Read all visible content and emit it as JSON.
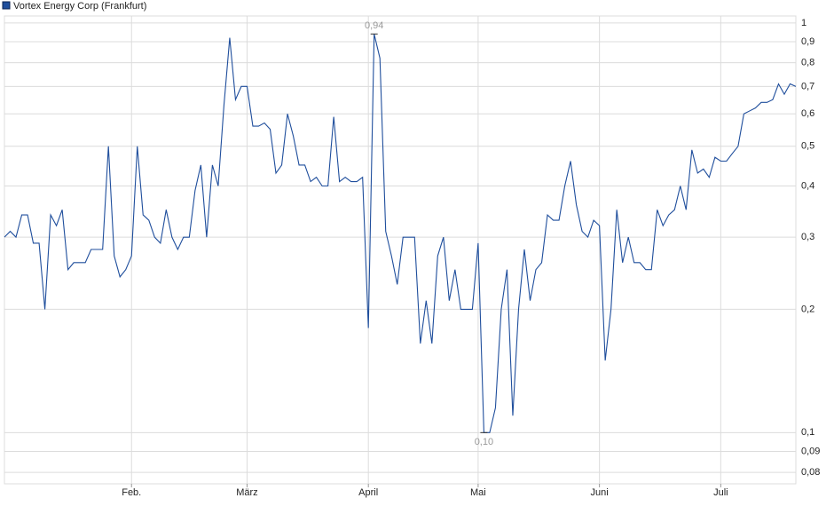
{
  "chart_data": {
    "type": "line",
    "categories": [
      null,
      null,
      null,
      null,
      null,
      null,
      null,
      null,
      null,
      null,
      null,
      null,
      null,
      null,
      null,
      null,
      null,
      null,
      null,
      null,
      null,
      null,
      "Feb.",
      null,
      null,
      null,
      null,
      null,
      null,
      null,
      null,
      null,
      null,
      null,
      null,
      null,
      null,
      null,
      null,
      null,
      null,
      null,
      "März",
      null,
      null,
      null,
      null,
      null,
      null,
      null,
      null,
      null,
      null,
      null,
      null,
      null,
      null,
      null,
      null,
      null,
      null,
      null,
      null,
      "April",
      null,
      null,
      null,
      null,
      null,
      null,
      null,
      null,
      null,
      null,
      null,
      null,
      null,
      null,
      null,
      null,
      null,
      null,
      "Mai",
      null,
      null,
      null,
      null,
      null,
      null,
      null,
      null,
      null,
      null,
      null,
      null,
      null,
      null,
      null,
      null,
      null,
      null,
      null,
      null,
      "Juni",
      null,
      null,
      null,
      null,
      null,
      null,
      null,
      null,
      null,
      null,
      null,
      null,
      null,
      null,
      null,
      null,
      null,
      null,
      null,
      null,
      "Juli",
      null,
      null,
      null,
      null,
      null,
      null,
      null,
      null,
      null,
      null,
      null,
      null,
      null
    ],
    "series": [
      {
        "name": "Vortex Energy Corp (Frankfurt)",
        "color": "#1f4e9c",
        "values": [
          0.3,
          0.31,
          0.3,
          0.34,
          0.34,
          0.29,
          0.29,
          0.2,
          0.34,
          0.32,
          0.35,
          0.25,
          0.26,
          0.26,
          0.26,
          0.28,
          0.28,
          0.28,
          0.5,
          0.27,
          0.24,
          0.25,
          0.27,
          0.5,
          0.34,
          0.33,
          0.3,
          0.29,
          0.35,
          0.3,
          0.28,
          0.3,
          0.3,
          0.39,
          0.45,
          0.3,
          0.45,
          0.4,
          0.63,
          0.92,
          0.65,
          0.7,
          0.7,
          0.56,
          0.56,
          0.57,
          0.55,
          0.43,
          0.45,
          0.6,
          0.53,
          0.45,
          0.45,
          0.41,
          0.42,
          0.4,
          0.4,
          0.59,
          0.41,
          0.42,
          0.41,
          0.41,
          0.42,
          0.18,
          0.94,
          0.82,
          0.31,
          0.27,
          0.23,
          0.3,
          0.3,
          0.3,
          0.165,
          0.21,
          0.165,
          0.27,
          0.3,
          0.21,
          0.25,
          0.2,
          0.2,
          0.2,
          0.29,
          0.1,
          0.1,
          0.115,
          0.2,
          0.25,
          0.11,
          0.2,
          0.28,
          0.21,
          0.25,
          0.26,
          0.34,
          0.33,
          0.33,
          0.4,
          0.46,
          0.36,
          0.31,
          0.3,
          0.33,
          0.32,
          0.15,
          0.2,
          0.35,
          0.26,
          0.3,
          0.26,
          0.26,
          0.25,
          0.25,
          0.35,
          0.32,
          0.34,
          0.35,
          0.4,
          0.35,
          0.49,
          0.43,
          0.44,
          0.42,
          0.47,
          0.46,
          0.46,
          0.48,
          0.5,
          0.6,
          0.61,
          0.62,
          0.64,
          0.64,
          0.65,
          0.71,
          0.67,
          0.71,
          0.7
        ],
        "value_labels": [
          null,
          null,
          null,
          null,
          null,
          null,
          null,
          null,
          null,
          null,
          null,
          null,
          null,
          null,
          null,
          null,
          null,
          null,
          null,
          null,
          null,
          null,
          null,
          null,
          null,
          null,
          null,
          null,
          null,
          null,
          null,
          null,
          null,
          null,
          null,
          null,
          null,
          null,
          null,
          null,
          null,
          null,
          null,
          null,
          null,
          null,
          null,
          null,
          null,
          null,
          null,
          null,
          null,
          null,
          null,
          null,
          null,
          null,
          null,
          null,
          null,
          null,
          null,
          null,
          "0,94",
          null,
          null,
          null,
          null,
          null,
          null,
          null,
          null,
          null,
          null,
          null,
          null,
          null,
          null,
          null,
          null,
          null,
          null,
          "0,10",
          null,
          null,
          null,
          null,
          null,
          null,
          null,
          null,
          null,
          null,
          null,
          null,
          null,
          null,
          null,
          null,
          null,
          null,
          null,
          null,
          null,
          null,
          null,
          null,
          null,
          null,
          null,
          null,
          null,
          null,
          null,
          null,
          null,
          null,
          null,
          null,
          null,
          null,
          null,
          null,
          null,
          null,
          null,
          null,
          null,
          null,
          null,
          null,
          null,
          null,
          null,
          null,
          null,
          null
        ]
      }
    ],
    "log_scale": true,
    "ylim": [
      0.075,
      1.04
    ],
    "yticks": [
      1,
      {
        "value": 0.9,
        "label": "0,9"
      },
      {
        "value": 0.8,
        "label": "0,8"
      },
      {
        "value": 0.7,
        "label": "0,7"
      },
      {
        "value": 0.6,
        "label": "0,6"
      },
      {
        "value": 0.5,
        "label": "0,5"
      },
      {
        "value": 0.4,
        "label": "0,4"
      },
      {
        "value": 0.3,
        "label": "0,3"
      },
      {
        "value": 0.2,
        "label": "0,2"
      },
      {
        "value": 0.1,
        "label": "0,1"
      },
      {
        "value": 0.09,
        "label": "0,09"
      },
      {
        "value": 0.08,
        "label": "0,08"
      }
    ],
    "grid": true
  }
}
